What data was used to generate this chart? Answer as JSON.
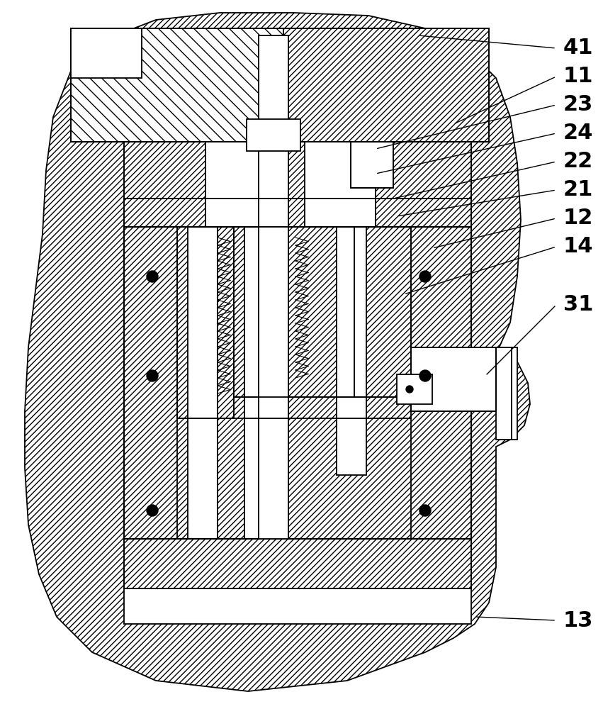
{
  "bg_color": "#ffffff",
  "lw": 1.3,
  "figsize": [
    8.51,
    10.0
  ],
  "dpi": 100,
  "annotations": [
    [
      "41",
      795,
      68,
      590,
      50
    ],
    [
      "11",
      795,
      108,
      640,
      175
    ],
    [
      "23",
      795,
      148,
      530,
      210
    ],
    [
      "24",
      795,
      188,
      530,
      245
    ],
    [
      "22",
      795,
      228,
      555,
      280
    ],
    [
      "21",
      795,
      268,
      560,
      305
    ],
    [
      "12",
      795,
      308,
      610,
      350
    ],
    [
      "14",
      795,
      348,
      570,
      415
    ],
    [
      "31",
      795,
      430,
      685,
      530
    ],
    [
      "13",
      795,
      875,
      670,
      870
    ]
  ]
}
